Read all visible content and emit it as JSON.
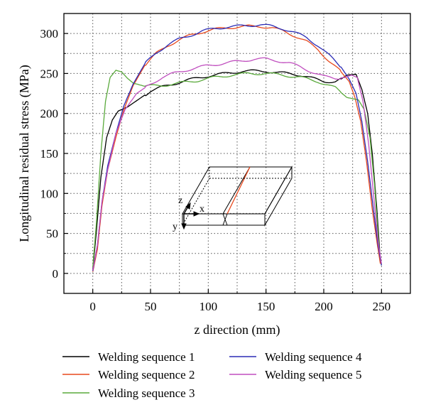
{
  "chart_data": {
    "type": "line",
    "title": "",
    "xlabel": "z direction (mm)",
    "ylabel": "Longitudinal residual stress (MPa)",
    "xlim": [
      -25,
      275
    ],
    "ylim": [
      -25,
      325
    ],
    "xticks": [
      0,
      50,
      100,
      150,
      200,
      250
    ],
    "yticks": [
      0,
      50,
      100,
      150,
      200,
      250,
      300
    ],
    "grid": "dotted",
    "legend_position": "bottom",
    "series": [
      {
        "name": "Welding sequence 1",
        "color": "#000000",
        "points": [
          [
            0,
            5
          ],
          [
            3,
            50
          ],
          [
            7,
            120
          ],
          [
            12,
            170
          ],
          [
            17,
            192
          ],
          [
            22,
            203
          ],
          [
            30,
            208
          ],
          [
            40,
            218
          ],
          [
            50,
            228
          ],
          [
            60,
            233
          ],
          [
            70,
            237
          ],
          [
            80,
            241
          ],
          [
            90,
            244
          ],
          [
            100,
            247
          ],
          [
            110,
            249
          ],
          [
            120,
            251
          ],
          [
            130,
            253
          ],
          [
            140,
            253
          ],
          [
            150,
            253
          ],
          [
            160,
            251
          ],
          [
            170,
            250
          ],
          [
            180,
            248
          ],
          [
            190,
            244
          ],
          [
            200,
            240
          ],
          [
            210,
            240
          ],
          [
            215,
            243
          ],
          [
            220,
            248
          ],
          [
            228,
            249
          ],
          [
            233,
            230
          ],
          [
            238,
            200
          ],
          [
            242,
            150
          ],
          [
            246,
            80
          ],
          [
            249,
            15
          ]
        ]
      },
      {
        "name": "Welding sequence 2",
        "color": "#e8491d",
        "points": [
          [
            0,
            2
          ],
          [
            4,
            30
          ],
          [
            8,
            85
          ],
          [
            13,
            130
          ],
          [
            20,
            170
          ],
          [
            27,
            205
          ],
          [
            35,
            235
          ],
          [
            45,
            260
          ],
          [
            55,
            275
          ],
          [
            65,
            285
          ],
          [
            75,
            292
          ],
          [
            85,
            298
          ],
          [
            95,
            302
          ],
          [
            105,
            305
          ],
          [
            115,
            307
          ],
          [
            125,
            308
          ],
          [
            135,
            309
          ],
          [
            145,
            309
          ],
          [
            155,
            307
          ],
          [
            165,
            303
          ],
          [
            175,
            297
          ],
          [
            185,
            290
          ],
          [
            195,
            280
          ],
          [
            205,
            265
          ],
          [
            215,
            252
          ],
          [
            222,
            240
          ],
          [
            227,
            220
          ],
          [
            232,
            190
          ],
          [
            237,
            140
          ],
          [
            242,
            80
          ],
          [
            246,
            40
          ],
          [
            249,
            12
          ]
        ]
      },
      {
        "name": "Welding sequence 3",
        "color": "#5aaa3c",
        "points": [
          [
            0,
            8
          ],
          [
            3,
            60
          ],
          [
            7,
            150
          ],
          [
            11,
            215
          ],
          [
            15,
            245
          ],
          [
            20,
            254
          ],
          [
            25,
            252
          ],
          [
            30,
            244
          ],
          [
            35,
            238
          ],
          [
            45,
            234
          ],
          [
            60,
            235
          ],
          [
            75,
            238
          ],
          [
            90,
            241
          ],
          [
            105,
            245
          ],
          [
            120,
            248
          ],
          [
            135,
            250
          ],
          [
            150,
            250
          ],
          [
            165,
            248
          ],
          [
            180,
            245
          ],
          [
            195,
            240
          ],
          [
            210,
            232
          ],
          [
            220,
            220
          ],
          [
            230,
            217
          ],
          [
            235,
            205
          ],
          [
            240,
            170
          ],
          [
            244,
            110
          ],
          [
            248,
            30
          ],
          [
            250,
            10
          ]
        ]
      },
      {
        "name": "Welding sequence 4",
        "color": "#2b2bb5",
        "points": [
          [
            0,
            3
          ],
          [
            4,
            35
          ],
          [
            8,
            90
          ],
          [
            13,
            135
          ],
          [
            20,
            175
          ],
          [
            27,
            210
          ],
          [
            35,
            237
          ],
          [
            45,
            262
          ],
          [
            55,
            276
          ],
          [
            65,
            286
          ],
          [
            75,
            293
          ],
          [
            85,
            298
          ],
          [
            95,
            303
          ],
          [
            105,
            306
          ],
          [
            115,
            308
          ],
          [
            125,
            309
          ],
          [
            135,
            310
          ],
          [
            145,
            311
          ],
          [
            155,
            309
          ],
          [
            165,
            306
          ],
          [
            175,
            301
          ],
          [
            185,
            295
          ],
          [
            195,
            285
          ],
          [
            205,
            272
          ],
          [
            215,
            258
          ],
          [
            222,
            243
          ],
          [
            228,
            225
          ],
          [
            233,
            190
          ],
          [
            238,
            140
          ],
          [
            243,
            80
          ],
          [
            247,
            35
          ],
          [
            250,
            10
          ]
        ]
      },
      {
        "name": "Welding sequence 5",
        "color": "#c04fbf",
        "points": [
          [
            0,
            4
          ],
          [
            4,
            35
          ],
          [
            8,
            90
          ],
          [
            13,
            130
          ],
          [
            20,
            175
          ],
          [
            28,
            205
          ],
          [
            38,
            225
          ],
          [
            50,
            237
          ],
          [
            60,
            245
          ],
          [
            70,
            250
          ],
          [
            80,
            254
          ],
          [
            90,
            257
          ],
          [
            100,
            260
          ],
          [
            110,
            262
          ],
          [
            120,
            264
          ],
          [
            130,
            266
          ],
          [
            140,
            268
          ],
          [
            150,
            268
          ],
          [
            160,
            266
          ],
          [
            170,
            263
          ],
          [
            180,
            258
          ],
          [
            190,
            252
          ],
          [
            200,
            246
          ],
          [
            210,
            244
          ],
          [
            218,
            245
          ],
          [
            224,
            248
          ],
          [
            229,
            245
          ],
          [
            234,
            215
          ],
          [
            239,
            160
          ],
          [
            243,
            100
          ],
          [
            247,
            40
          ],
          [
            250,
            12
          ]
        ]
      }
    ],
    "inset_labels": {
      "z": "z",
      "x": "x",
      "y": "y"
    }
  }
}
